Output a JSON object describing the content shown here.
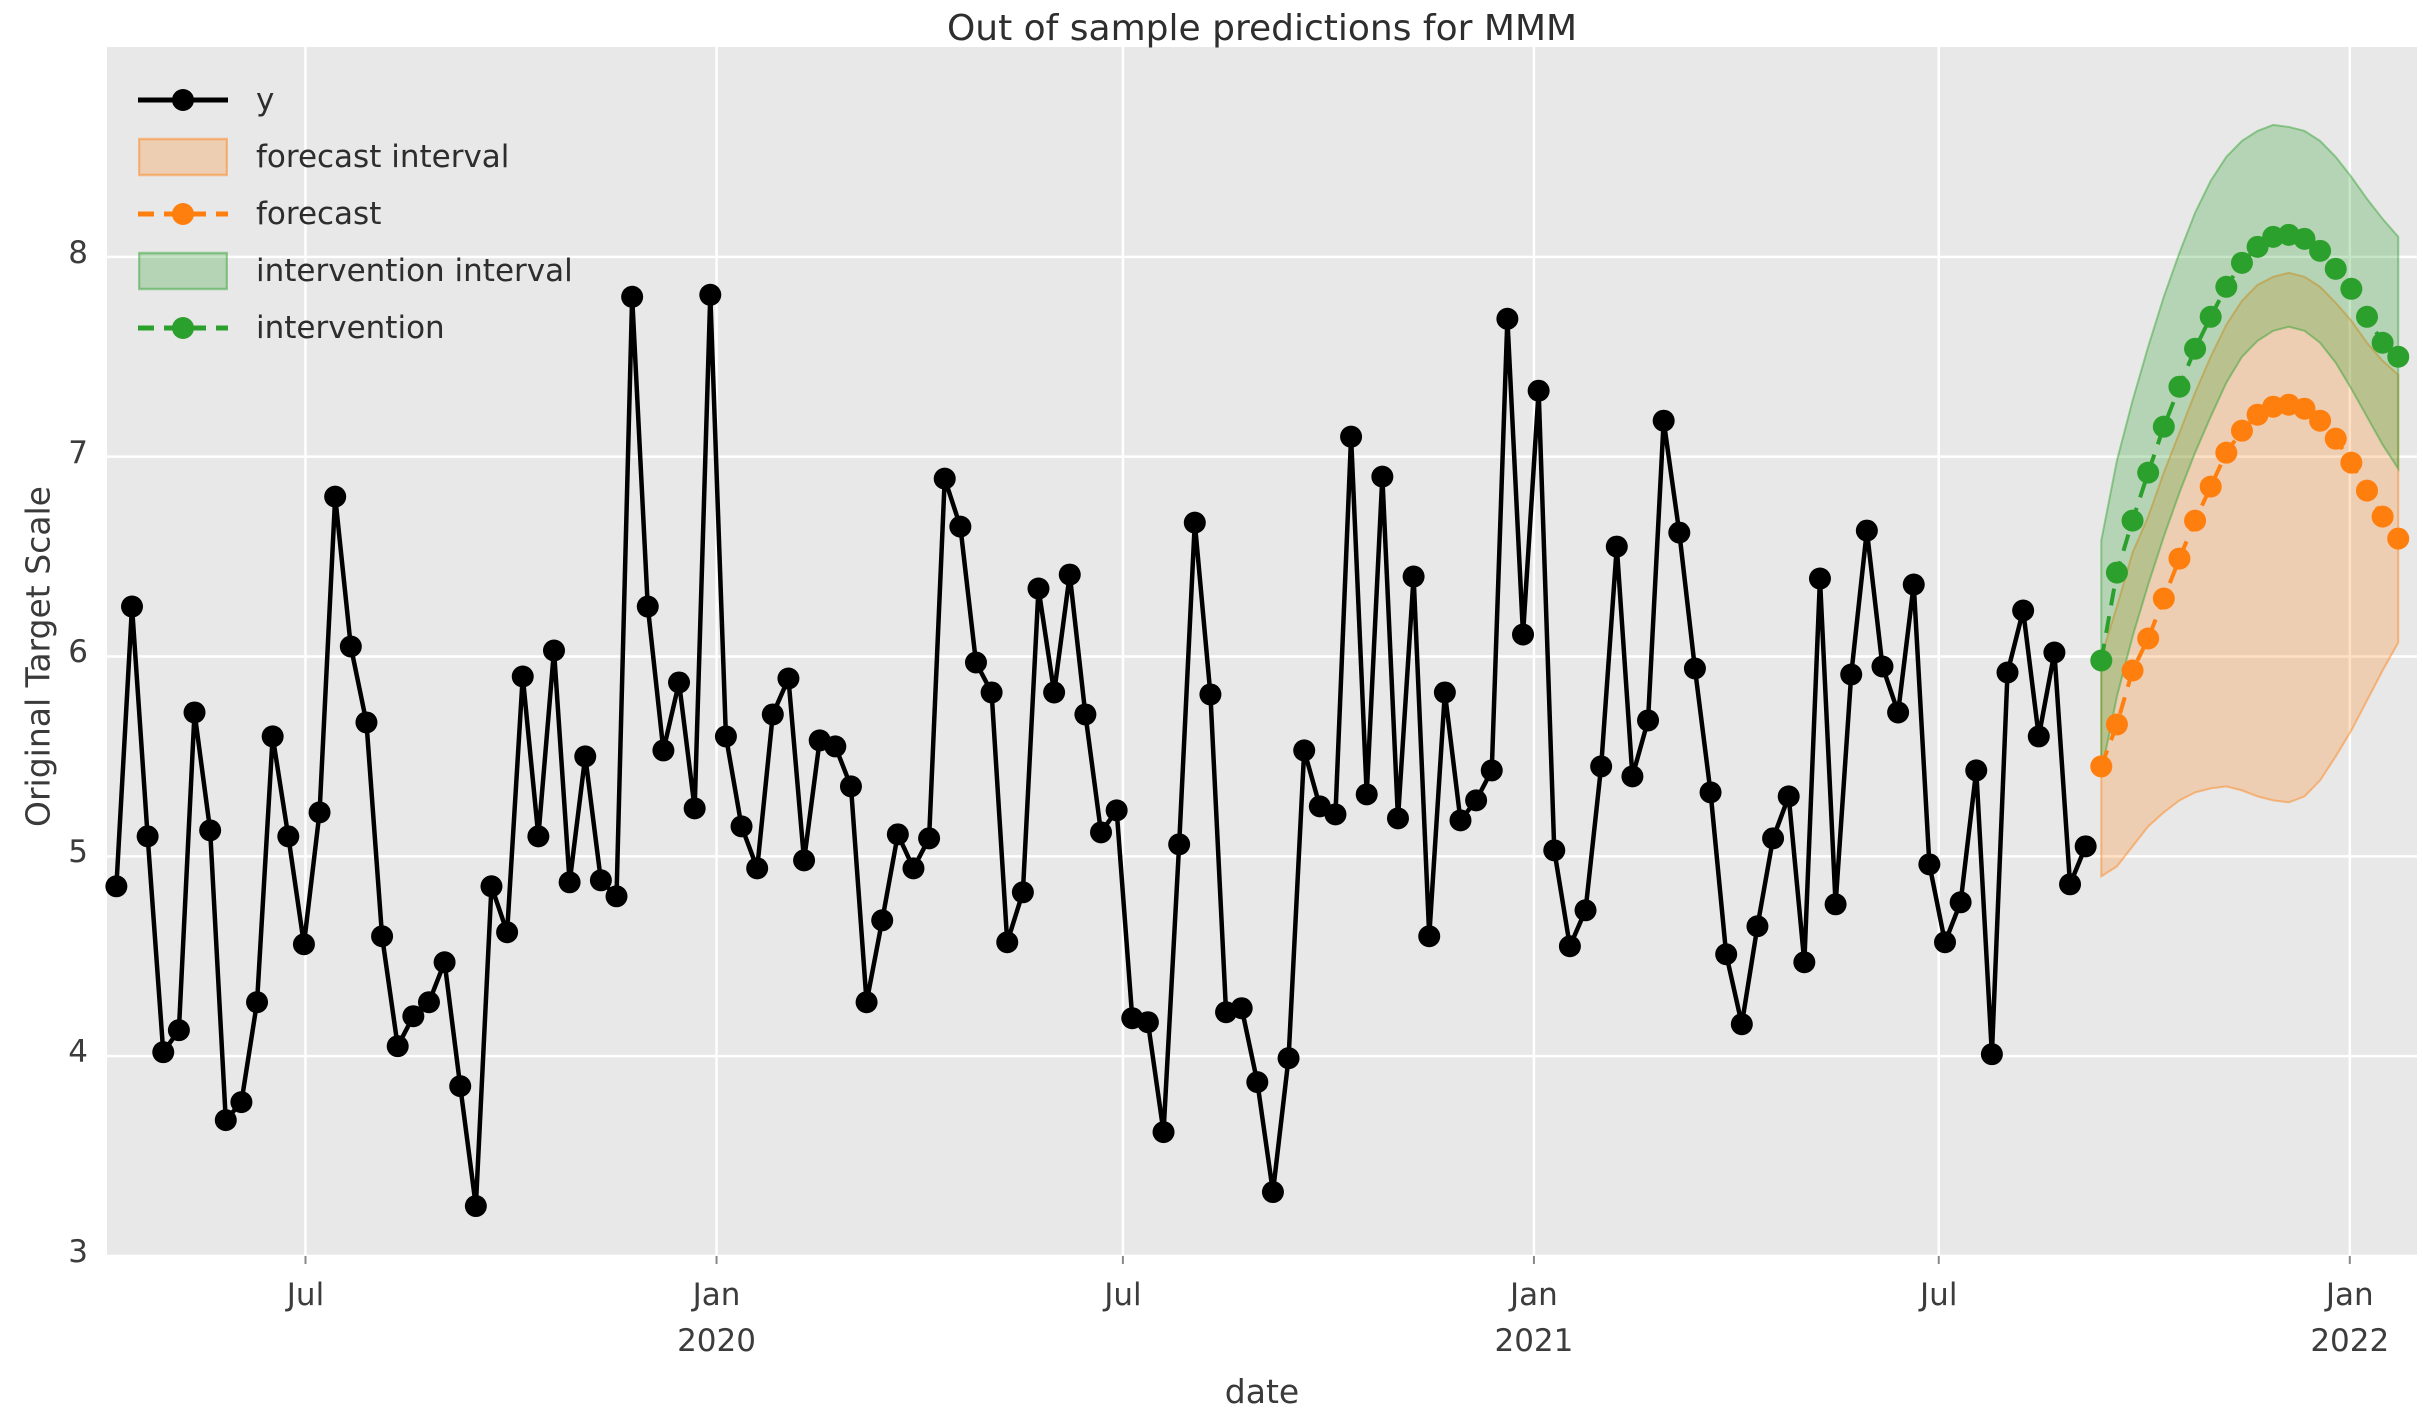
{
  "title": "Out of sample predictions for MMM",
  "xlabel": "date",
  "ylabel": "Original Target Scale",
  "legend": {
    "items": [
      {
        "label": "y",
        "kind": "line",
        "color": "#000000",
        "dashed": false
      },
      {
        "label": "forecast interval",
        "kind": "patch",
        "color": "#ff7f0e"
      },
      {
        "label": "forecast",
        "kind": "line",
        "color": "#ff7f0e",
        "dashed": true
      },
      {
        "label": "intervention interval",
        "kind": "patch",
        "color": "#2ca02c"
      },
      {
        "label": "intervention",
        "kind": "line",
        "color": "#2ca02c",
        "dashed": true
      }
    ]
  },
  "colors": {
    "y_series": "#000000",
    "forecast": "#ff7f0e",
    "intervention": "#2ca02c",
    "axes_background": "#e8e8e8",
    "grid": "#ffffff",
    "text": "#3a3a3a"
  },
  "chart_data": {
    "type": "line",
    "title": "Out of sample predictions for MMM",
    "xlabel": "date",
    "ylabel": "Original Target Scale",
    "grid": true,
    "legend_position": "upper left",
    "y_ticks": [
      3,
      4,
      5,
      6,
      7,
      8
    ],
    "ylim_render": [
      3.0,
      9.05
    ],
    "xlim_weeks": [
      -0.6,
      147.2
    ],
    "x_ticks": [
      {
        "week": 12.1,
        "lines": [
          "Jul"
        ]
      },
      {
        "week": 38.4,
        "lines": [
          "Jan",
          "2020"
        ]
      },
      {
        "week": 64.4,
        "lines": [
          "Jul"
        ]
      },
      {
        "week": 90.7,
        "lines": [
          "Jan",
          "2021"
        ]
      },
      {
        "week": 116.6,
        "lines": [
          "Jul"
        ]
      },
      {
        "week": 142.9,
        "lines": [
          "Jan",
          "2022"
        ]
      }
    ],
    "series": [
      {
        "name": "y",
        "style": "solid_markers",
        "color": "#000000",
        "start_week": 0,
        "values": [
          4.85,
          6.25,
          5.1,
          4.02,
          4.13,
          5.72,
          5.13,
          3.68,
          3.77,
          4.27,
          5.6,
          5.1,
          4.56,
          5.22,
          6.8,
          6.05,
          5.67,
          4.6,
          4.05,
          4.2,
          4.27,
          4.47,
          3.85,
          3.25,
          4.85,
          4.62,
          5.9,
          5.1,
          6.03,
          4.87,
          5.5,
          4.88,
          4.8,
          7.8,
          6.25,
          5.53,
          5.87,
          5.24,
          7.81,
          5.6,
          5.15,
          4.94,
          5.71,
          5.89,
          4.98,
          5.58,
          5.55,
          5.35,
          4.27,
          4.68,
          5.11,
          4.94,
          5.09,
          6.89,
          6.65,
          5.97,
          5.82,
          4.57,
          4.82,
          6.34,
          5.82,
          6.41,
          5.71,
          5.12,
          5.23,
          4.19,
          4.17,
          3.62,
          5.06,
          6.67,
          5.81,
          4.22,
          4.24,
          3.87,
          3.32,
          3.99,
          5.53,
          5.25,
          5.21,
          7.1,
          5.31,
          6.9,
          5.19,
          6.4,
          4.6,
          5.82,
          5.18,
          5.28,
          5.43,
          7.69,
          6.11,
          7.33,
          5.03,
          4.55,
          4.73,
          5.45,
          6.55,
          5.4,
          5.68,
          7.18,
          6.62,
          5.94,
          5.32,
          4.51,
          4.16,
          4.65,
          5.09,
          5.3,
          4.47,
          6.39,
          4.76,
          5.91,
          6.63,
          5.95,
          5.72,
          6.36,
          4.96,
          4.57,
          4.77,
          5.43,
          4.01,
          5.92,
          6.23,
          5.6,
          6.02,
          4.86,
          5.05
        ]
      },
      {
        "name": "forecast interval",
        "style": "band",
        "color": "#ff7f0e",
        "start_week": 127,
        "lower": [
          4.9,
          4.95,
          5.05,
          5.15,
          5.22,
          5.28,
          5.32,
          5.34,
          5.35,
          5.33,
          5.3,
          5.28,
          5.27,
          5.3,
          5.38,
          5.5,
          5.63,
          5.78,
          5.93,
          6.07
        ],
        "upper": [
          6.0,
          6.25,
          6.52,
          6.7,
          6.92,
          7.12,
          7.32,
          7.5,
          7.66,
          7.78,
          7.86,
          7.9,
          7.92,
          7.9,
          7.85,
          7.77,
          7.68,
          7.57,
          7.48,
          7.41
        ]
      },
      {
        "name": "forecast",
        "style": "dashed_markers",
        "color": "#ff7f0e",
        "start_week": 127,
        "values": [
          5.45,
          5.66,
          5.93,
          6.09,
          6.29,
          6.49,
          6.68,
          6.85,
          7.02,
          7.13,
          7.21,
          7.25,
          7.26,
          7.24,
          7.18,
          7.09,
          6.97,
          6.83,
          6.7,
          6.59
        ]
      },
      {
        "name": "intervention interval",
        "style": "band",
        "color": "#2ca02c",
        "start_week": 127,
        "lower": [
          5.42,
          5.8,
          6.1,
          6.36,
          6.6,
          6.82,
          7.02,
          7.2,
          7.37,
          7.5,
          7.58,
          7.63,
          7.65,
          7.63,
          7.57,
          7.47,
          7.34,
          7.2,
          7.06,
          6.94
        ],
        "upper": [
          6.58,
          6.98,
          7.28,
          7.55,
          7.8,
          8.02,
          8.22,
          8.38,
          8.5,
          8.58,
          8.63,
          8.66,
          8.65,
          8.63,
          8.58,
          8.5,
          8.4,
          8.29,
          8.19,
          8.1
        ]
      },
      {
        "name": "intervention",
        "style": "dashed_markers",
        "color": "#2ca02c",
        "start_week": 127,
        "values": [
          5.98,
          6.42,
          6.68,
          6.92,
          7.15,
          7.35,
          7.54,
          7.7,
          7.85,
          7.97,
          8.05,
          8.1,
          8.11,
          8.09,
          8.03,
          7.94,
          7.84,
          7.7,
          7.57,
          7.5
        ]
      }
    ]
  }
}
